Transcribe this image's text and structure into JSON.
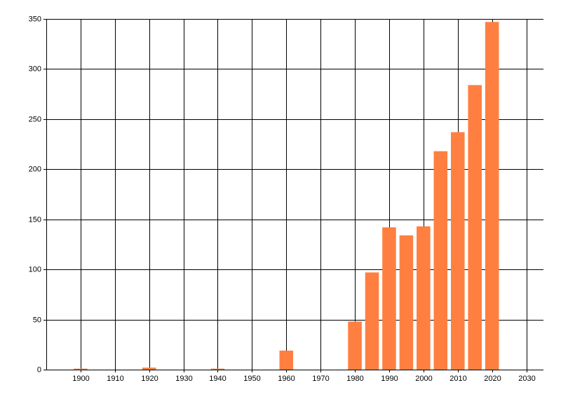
{
  "chart_data": {
    "type": "bar",
    "x": [
      1900,
      1920,
      1940,
      1960,
      1980,
      1985,
      1990,
      1995,
      2000,
      2005,
      2010,
      2015,
      2020
    ],
    "values": [
      1,
      2,
      1,
      19,
      48,
      97,
      142,
      134,
      143,
      218,
      237,
      284,
      347
    ],
    "color": "#ff7f41",
    "xlim": [
      1890,
      2035
    ],
    "xticks": [
      1900,
      1910,
      1920,
      1930,
      1940,
      1950,
      1960,
      1970,
      1980,
      1990,
      2000,
      2010,
      2020,
      2030
    ],
    "ylim": [
      0,
      350
    ],
    "yticks": [
      0,
      50,
      100,
      150,
      200,
      250,
      300,
      350
    ],
    "grid": true
  }
}
